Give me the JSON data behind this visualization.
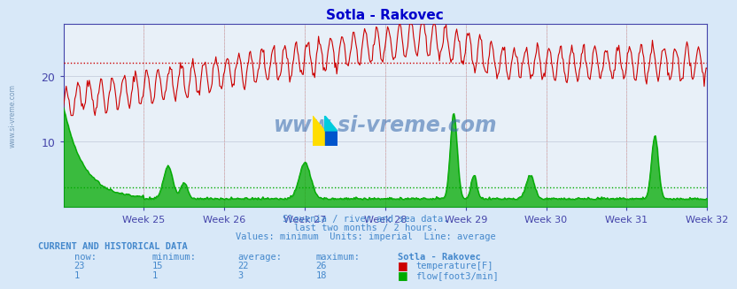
{
  "title": "Sotla - Rakovec",
  "title_color": "#0000cc",
  "bg_color": "#d8e8f8",
  "plot_bg_color": "#e8f0f8",
  "grid_color": "#c0c8d8",
  "x_week_labels": [
    "Week 25",
    "Week 26",
    "Week 27",
    "Week 28",
    "Week 29",
    "Week 30",
    "Week 31",
    "Week 32"
  ],
  "y_ticks": [
    10,
    20
  ],
  "y_min": 0,
  "y_max": 28,
  "temp_avg": 22,
  "flow_avg": 3,
  "temp_color": "#cc0000",
  "flow_color": "#00aa00",
  "subtitle_lines": [
    "Slovenia / river and sea data.",
    "last two months / 2 hours.",
    "Values: minimum  Units: imperial  Line: average"
  ],
  "subtitle_color": "#4488cc",
  "footer_header": "CURRENT AND HISTORICAL DATA",
  "footer_color": "#4488cc",
  "footer_cols": [
    "now:",
    "minimum:",
    "average:",
    "maximum:",
    "Sotla - Rakovec"
  ],
  "temp_row": [
    "23",
    "15",
    "22",
    "26",
    "temperature[F]"
  ],
  "flow_row": [
    "1",
    "1",
    "3",
    "18",
    "flow[foot3/min]"
  ],
  "watermark": "www.si-vreme.com",
  "watermark_color": "#3366aa",
  "axis_color": "#4444aa",
  "n_points": 672,
  "n_weeks": 8
}
